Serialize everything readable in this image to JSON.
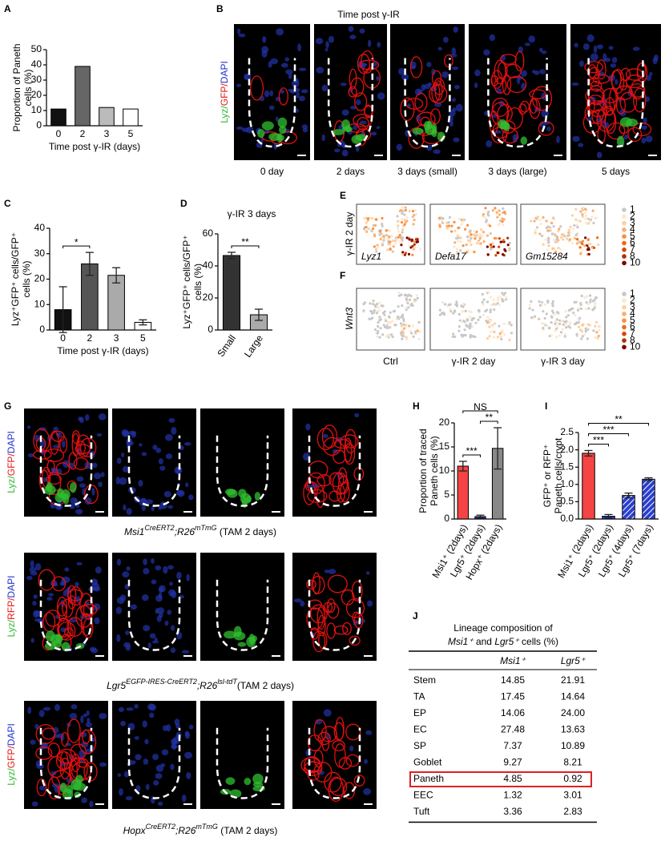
{
  "chart_data": [
    {
      "type": "bar",
      "panel": "A",
      "ylabel": [
        "Proportion of Paneth",
        "cells (%)"
      ],
      "xlabel": "Time post γ-IR (days)",
      "categories": [
        "0",
        "2",
        "3",
        "5"
      ],
      "values": [
        11,
        39,
        12,
        11
      ],
      "colors": [
        "#111111",
        "#666666",
        "#bbbbbb",
        "#ffffff"
      ],
      "ylim": [
        0,
        50
      ],
      "yticks": [
        0,
        10,
        20,
        30,
        40,
        50
      ]
    },
    {
      "type": "bar",
      "panel": "C",
      "ylabel": [
        "Lyz⁺GFP⁺ cells/GFP⁺",
        "cells (%)"
      ],
      "xlabel": "Time post γ-IR (days)",
      "categories": [
        "0",
        "2",
        "3",
        "5"
      ],
      "values": [
        8,
        26,
        21.5,
        3
      ],
      "errors": [
        9,
        4.5,
        3,
        1
      ],
      "colors": [
        "#111111",
        "#555555",
        "#aaaaaa",
        "#ffffff"
      ],
      "ylim": [
        0,
        40
      ],
      "yticks": [
        0,
        10,
        20,
        30,
        40
      ],
      "significance": [
        {
          "from": 0,
          "to": 1,
          "label": "*"
        }
      ]
    },
    {
      "type": "bar",
      "panel": "D",
      "title": "γ-IR 3 days",
      "ylabel": [
        "Lyz⁺GFP⁺ cells/GFP⁺",
        "cells (%)"
      ],
      "categories": [
        "Small",
        "Large"
      ],
      "values": [
        46.5,
        9.5
      ],
      "errors": [
        2,
        3.5
      ],
      "colors": [
        "#333333",
        "#aaaaaa"
      ],
      "ylim": [
        0,
        60
      ],
      "yticks": [
        0,
        20,
        40,
        60
      ],
      "significance": [
        {
          "from": 0,
          "to": 1,
          "label": "**"
        }
      ]
    },
    {
      "type": "bar",
      "panel": "H",
      "ylabel": [
        "Proportion of traced",
        "Paneth cells (%)"
      ],
      "categories": [
        "Msi1⁺ (2days)",
        "Lgr5⁺ (2days)",
        "Hopx⁺ (2days)"
      ],
      "values": [
        11,
        0.5,
        14.7
      ],
      "errors": [
        1,
        0.3,
        4.3
      ],
      "colors": [
        "#f44444",
        "#2a3fd0",
        "#888888"
      ],
      "ylim": [
        0,
        20
      ],
      "yticks": [
        0,
        5,
        10,
        15,
        20
      ],
      "significance": [
        {
          "from": 0,
          "to": 1,
          "label": "***"
        },
        {
          "from": 1,
          "to": 2,
          "label": "**"
        },
        {
          "from": 0,
          "to": 2,
          "label": "NS"
        }
      ]
    },
    {
      "type": "bar",
      "panel": "I",
      "ylabel": [
        "GFP⁺ or RFP⁺",
        "Paneth cells/crypt"
      ],
      "categories": [
        "Msi1⁺ (2days)",
        "Lgr5⁺ (2days)",
        "Lgr5⁺ (4days)",
        "Lgr5⁺ (7days)"
      ],
      "values": [
        1.9,
        0.08,
        0.68,
        1.15
      ],
      "errors": [
        0.08,
        0.05,
        0.07,
        0.04
      ],
      "colors": [
        "#f44444",
        "#2a3fd0",
        "#2a3fd0",
        "#2a3fd0"
      ],
      "hatch": [
        false,
        false,
        true,
        true
      ],
      "ylim": [
        0,
        2.5
      ],
      "yticks": [
        {
          "value": 0,
          "label": "0.0"
        },
        0.5,
        {
          "value": 1,
          "label": "1.0"
        },
        1.5,
        {
          "value": 2,
          "label": "2.0"
        },
        2.5
      ],
      "significance": [
        {
          "from": 0,
          "to": 1,
          "label": "***"
        },
        {
          "from": 0,
          "to": 2,
          "label": "***"
        },
        {
          "from": 0,
          "to": 3,
          "label": "**"
        }
      ]
    }
  ],
  "micrographs_b": {
    "panel": "B",
    "title": "Time post γ-IR",
    "stain": [
      "Lyz/",
      "GFP/",
      "DAPI"
    ],
    "stain_colors": [
      "#2fb82f",
      "#e01818",
      "#2233cc"
    ],
    "captions": [
      "0 day",
      "2 days",
      "3 days (small)",
      "3 days (large)",
      "5 days"
    ]
  },
  "tsne_e": {
    "panel": "E",
    "ylabel": "γ-IR 2 day",
    "genes": [
      "Lyz1",
      "Defa17",
      "Gm15284"
    ]
  },
  "tsne_f": {
    "panel": "F",
    "ylabel": "Wnt3",
    "captions": [
      "Ctrl",
      "γ-IR 2 day",
      "γ-IR 3 day"
    ]
  },
  "tsne_legend": {
    "levels": [
      1,
      2,
      3,
      4,
      5,
      6,
      7,
      8,
      10
    ],
    "colors": [
      "#c8c8c8",
      "#fde8cf",
      "#fdd0a2",
      "#fdae6b",
      "#fd8d3c",
      "#f16913",
      "#d94801",
      "#a63603",
      "#7f0000"
    ]
  },
  "micrographs_g": {
    "panel": "G",
    "rows": [
      {
        "stain": [
          "Lyz/",
          "GFP/",
          "DAPI"
        ],
        "stain_colors": [
          "#2fb82f",
          "#e01818",
          "#2233cc"
        ],
        "caption": [
          {
            "text": "Msi1",
            "italic": true
          },
          {
            "text": "CreERT2",
            "italic": true,
            "sup": true
          },
          {
            "text": ";R26",
            "italic": true
          },
          {
            "text": "mTmG",
            "italic": true,
            "sup": true
          },
          {
            "text": " (TAM 2 days)"
          }
        ]
      },
      {
        "stain": [
          "Lyz/",
          "RFP/",
          "DAPI"
        ],
        "stain_colors": [
          "#2fb82f",
          "#e01818",
          "#2233cc"
        ],
        "caption": [
          {
            "text": "Lgr5",
            "italic": true
          },
          {
            "text": "EGFP-IRES-CreERT2",
            "italic": true,
            "sup": true
          },
          {
            "text": ";R26",
            "italic": true
          },
          {
            "text": "lsl-tdT",
            "italic": true,
            "sup": true
          },
          {
            "text": "(TAM 2 days)"
          }
        ]
      },
      {
        "stain": [
          "Lyz/",
          "GFP/",
          "DAPI"
        ],
        "stain_colors": [
          "#2fb82f",
          "#e01818",
          "#2233cc"
        ],
        "caption": [
          {
            "text": "Hopx",
            "italic": true
          },
          {
            "text": "CreERT2",
            "italic": true,
            "sup": true
          },
          {
            "text": ";R26",
            "italic": true
          },
          {
            "text": "mTmG",
            "italic": true,
            "sup": true
          },
          {
            "text": " (TAM 2 days)"
          }
        ]
      }
    ]
  },
  "table": {
    "panel": "J",
    "title": [
      "Lineage composition of",
      [
        {
          "text": "Msi1⁺",
          "italic": true
        },
        {
          "text": " and "
        },
        {
          "text": "Lgr5⁺",
          "italic": true
        },
        {
          "text": " cells (%)"
        }
      ]
    ],
    "header": [
      "Msi1⁺",
      "Lgr5⁺"
    ],
    "rows": [
      [
        "Stem",
        "14.85",
        "21.91"
      ],
      [
        "TA",
        "17.45",
        "14.64"
      ],
      [
        "EP",
        "14.06",
        "24.00"
      ],
      [
        "EC",
        "27.48",
        "13.63"
      ],
      [
        "SP",
        "7.37",
        "10.89"
      ],
      [
        "Goblet",
        "9.27",
        "8.21"
      ],
      [
        "Paneth",
        "4.85",
        "0.92"
      ],
      [
        "EEC",
        "1.32",
        "3.01"
      ],
      [
        "Tuft",
        "3.36",
        "2.83"
      ]
    ],
    "highlight_row": 6
  }
}
